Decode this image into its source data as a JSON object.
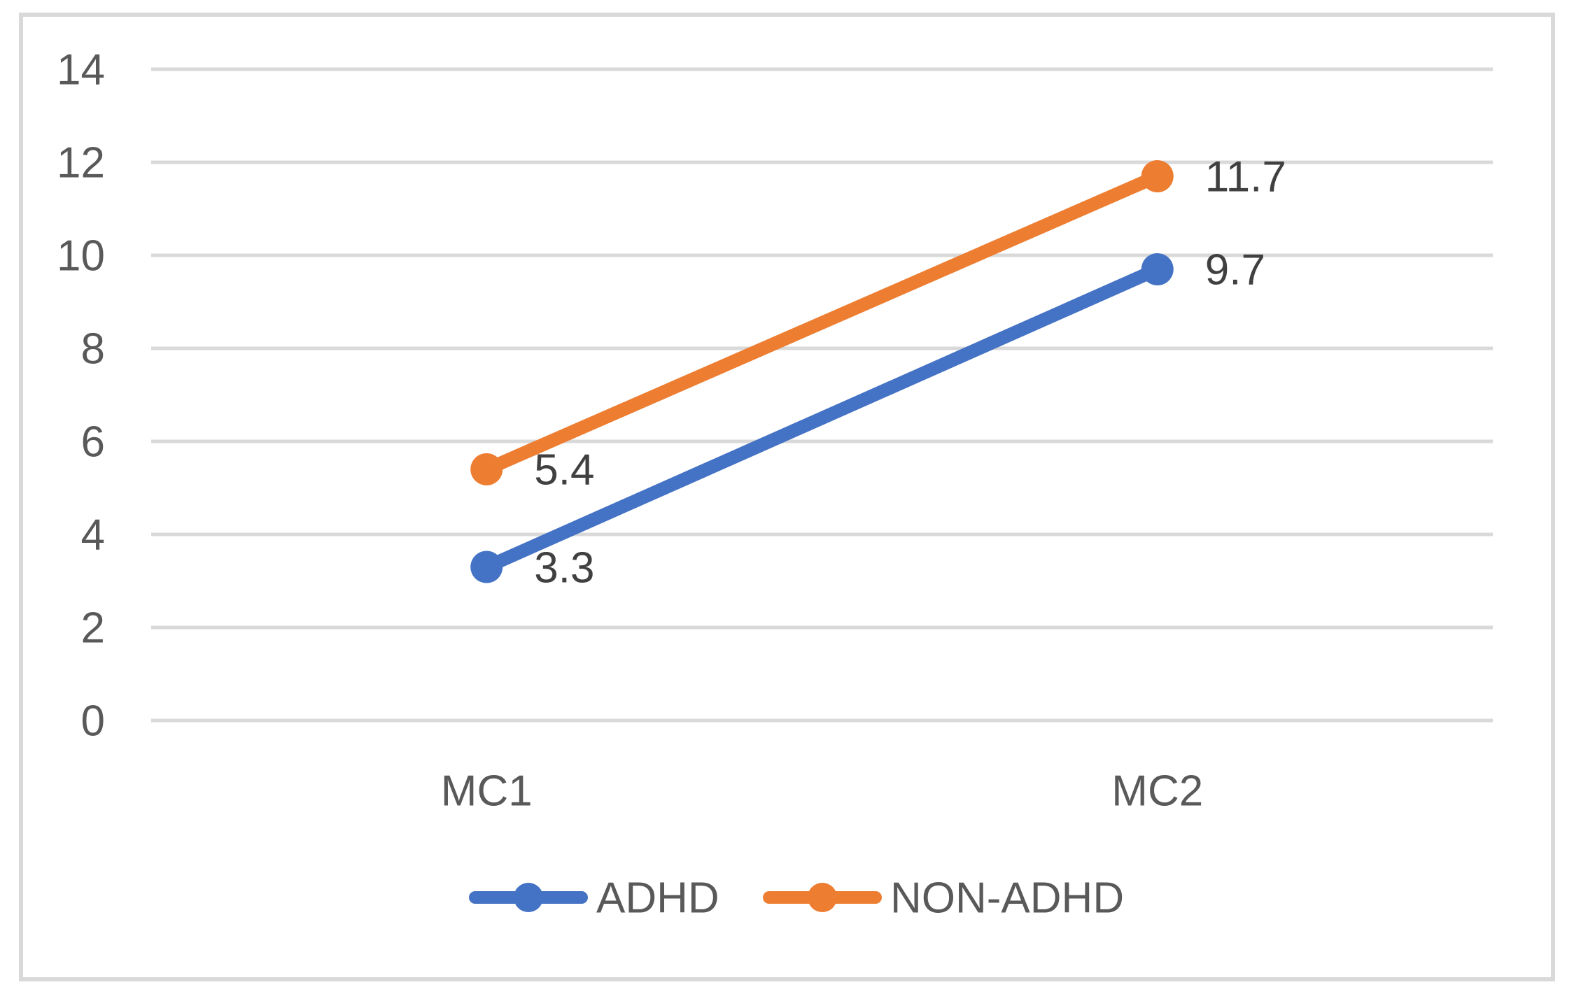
{
  "chart_data": {
    "type": "line",
    "categories": [
      "MC1",
      "MC2"
    ],
    "series": [
      {
        "name": "ADHD",
        "values": [
          3.3,
          9.7
        ],
        "data_labels": [
          "3.3",
          "9.7"
        ],
        "color": "#4472C4"
      },
      {
        "name": "NON-ADHD",
        "values": [
          5.4,
          11.7
        ],
        "data_labels": [
          "5.4",
          "11.7"
        ],
        "color": "#ED7D31"
      }
    ],
    "title": "",
    "xlabel": "",
    "ylabel": "",
    "ylim": [
      0,
      14
    ],
    "yticks": [
      0,
      2,
      4,
      6,
      8,
      10,
      12,
      14
    ],
    "ytick_labels": [
      "0",
      "2",
      "4",
      "6",
      "8",
      "10",
      "12",
      "14"
    ],
    "grid": "horizontal-only",
    "legend_position": "bottom",
    "marker": "circle",
    "data_labels_position": "right-of-point"
  },
  "colors": {
    "series_adhd": "#4472C4",
    "series_non_adhd": "#ED7D31",
    "gridline": "#D9D9D9",
    "chart_border": "#D9D9D9",
    "axis_text": "#595959",
    "data_label_text": "#404040",
    "background": "#FFFFFF"
  }
}
